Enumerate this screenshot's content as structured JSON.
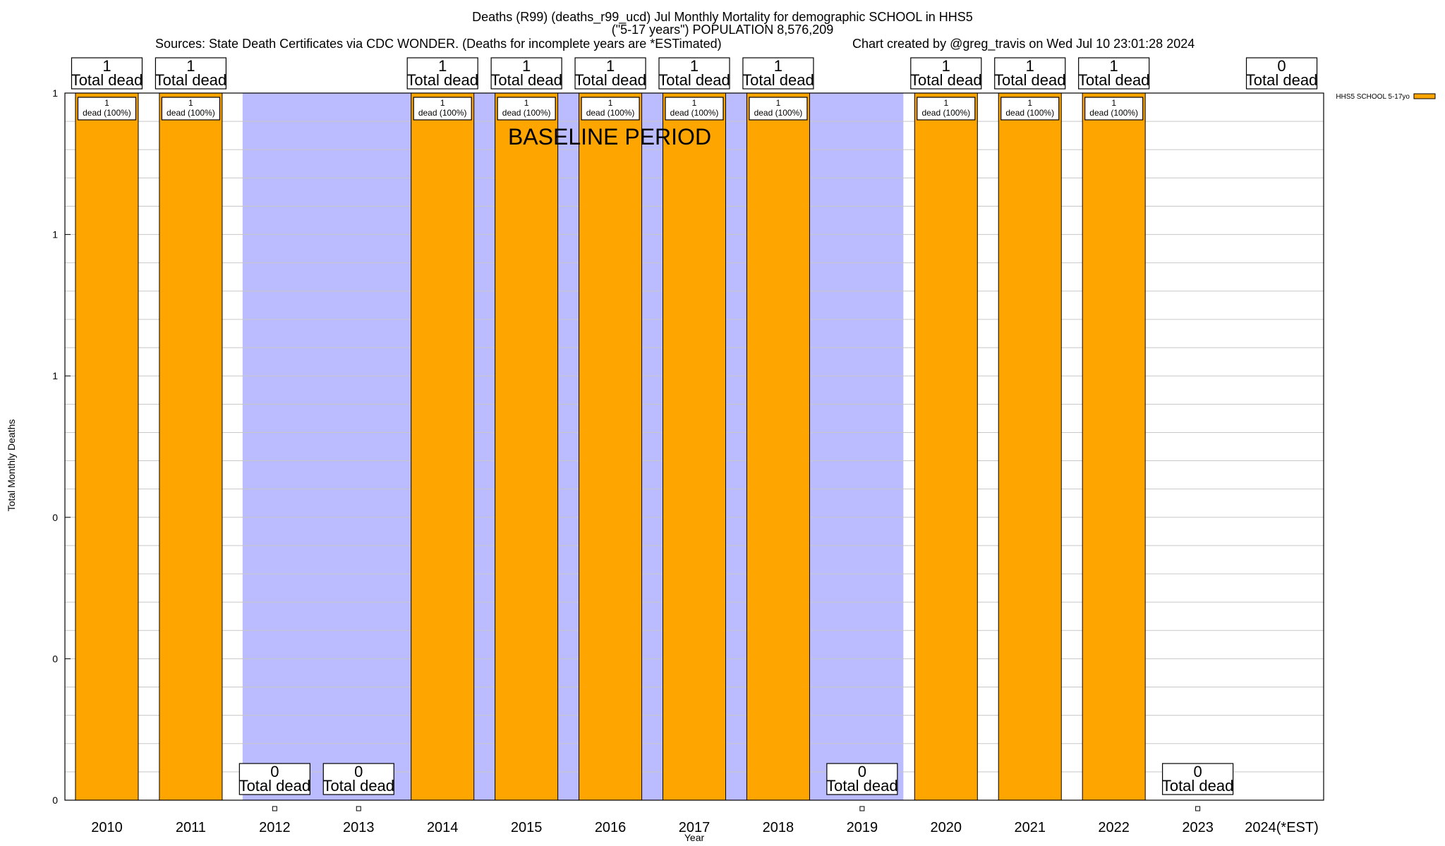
{
  "title": {
    "line1": "Deaths (R99) (deaths_r99_ucd) Jul Monthly Mortality for demographic SCHOOL in HHS5",
    "line2": "(\"5-17 years\") POPULATION 8,576,209",
    "line3": "Sources: State Death Certificates via CDC WONDER. (Deaths for incomplete years are *ESTimated)",
    "credit": "Chart created by @greg_travis on Wed Jul 10 23:01:28 2024"
  },
  "chart_data": {
    "type": "bar",
    "title": "Deaths (R99) (deaths_r99_ucd) Jul Monthly Mortality for demographic SCHOOL in HHS5",
    "xlabel": "Year",
    "ylabel": "Total Monthly Deaths",
    "ylim": [
      0,
      1
    ],
    "y_tick_labels": [
      "0",
      "0",
      "0",
      "1",
      "1",
      "1"
    ],
    "grid": true,
    "legend_position": "top-right",
    "baseline_label": "BASELINE PERIOD",
    "baseline_range": [
      "2012",
      "2019"
    ],
    "categories": [
      "2010",
      "2011",
      "2012",
      "2013",
      "2014",
      "2015",
      "2016",
      "2017",
      "2018",
      "2019",
      "2020",
      "2021",
      "2022",
      "2023",
      "2024(*EST)"
    ],
    "series": [
      {
        "name": "HHS5 SCHOOL 5-17yo",
        "color": "#ffa500",
        "values": [
          1,
          1,
          0,
          0,
          1,
          1,
          1,
          1,
          1,
          0,
          1,
          1,
          1,
          0,
          0
        ]
      }
    ],
    "top_labels": [
      "1\nTotal dead",
      "1\nTotal dead",
      "",
      "",
      "1\nTotal dead",
      "1\nTotal dead",
      "1\nTotal dead",
      "1\nTotal dead",
      "1\nTotal dead",
      "",
      "1\nTotal dead",
      "1\nTotal dead",
      "1\nTotal dead",
      "",
      "0\nTotal dead"
    ],
    "bottom_labels": [
      "",
      "",
      "0\nTotal dead",
      "0\nTotal dead",
      "",
      "",
      "",
      "",
      "",
      "0\nTotal dead",
      "",
      "",
      "",
      "0\nTotal dead",
      ""
    ],
    "inner_labels": [
      "1\ndead (100%)",
      "1\ndead (100%)",
      "",
      "",
      "1\ndead (100%)",
      "1\ndead (100%)",
      "1\ndead (100%)",
      "1\ndead (100%)",
      "1\ndead (100%)",
      "",
      "1\ndead (100%)",
      "1\ndead (100%)",
      "1\ndead (100%)",
      "",
      ""
    ],
    "colors": {
      "bar": "#ffa500",
      "baseline": "#bbbbff",
      "grid": "#c8c8c8"
    }
  }
}
